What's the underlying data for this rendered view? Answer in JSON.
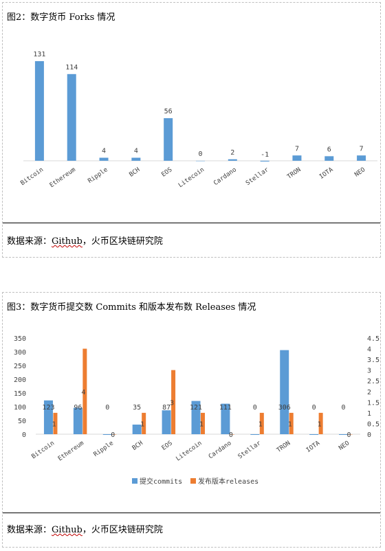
{
  "chart1": {
    "title": "图2：数字货币 Forks 情况",
    "source_prefix": "数据来源：",
    "source_github": "Github",
    "source_suffix": "，火币区块链研究院",
    "chart_type": "bar",
    "categories": [
      "Bitcoin",
      "Ethereum",
      "Ripple",
      "BCH",
      "EOS",
      "Litecoin",
      "Cardano",
      "Stellar",
      "TRON",
      "IOTA",
      "NEO"
    ],
    "values": [
      131,
      114,
      4,
      4,
      56,
      0,
      2,
      -1,
      7,
      6,
      7
    ],
    "color": "#5b9bd5"
  },
  "chart2": {
    "title": "图3：数字货币提交数 Commits 和版本发布数 Releases 情况",
    "source_prefix": "数据来源：",
    "source_github": "Github",
    "source_suffix": "，火币区块链研究院",
    "chart_type": "bar",
    "categories": [
      "Bitcoin",
      "Ethereum",
      "Ripple",
      "BCH",
      "EOS",
      "Litecoin",
      "Cardano",
      "Stellar",
      "TRON",
      "IOTA",
      "NEO"
    ],
    "left_ticks": [
      "350",
      "300",
      "250",
      "200",
      "150",
      "100",
      "50",
      "0"
    ],
    "right_ticks": [
      "4.5",
      "4",
      "3.5",
      "3",
      "2.5",
      "2",
      "1.5",
      "1",
      "0.5",
      "0"
    ],
    "left_ylim": [
      0,
      350
    ],
    "right_ylim": [
      0,
      4.5
    ],
    "series": [
      {
        "name": "提交commits",
        "axis": "left",
        "color": "#5b9bd5",
        "values": [
          123,
          96,
          0,
          35,
          87,
          121,
          111,
          0,
          306,
          0,
          0
        ]
      },
      {
        "name": "发布版本releases",
        "axis": "right",
        "color": "#ed7d31",
        "values": [
          1,
          4,
          0,
          1,
          3,
          1,
          0,
          1,
          1,
          1,
          0
        ]
      }
    ],
    "legend_position": "bottom"
  }
}
